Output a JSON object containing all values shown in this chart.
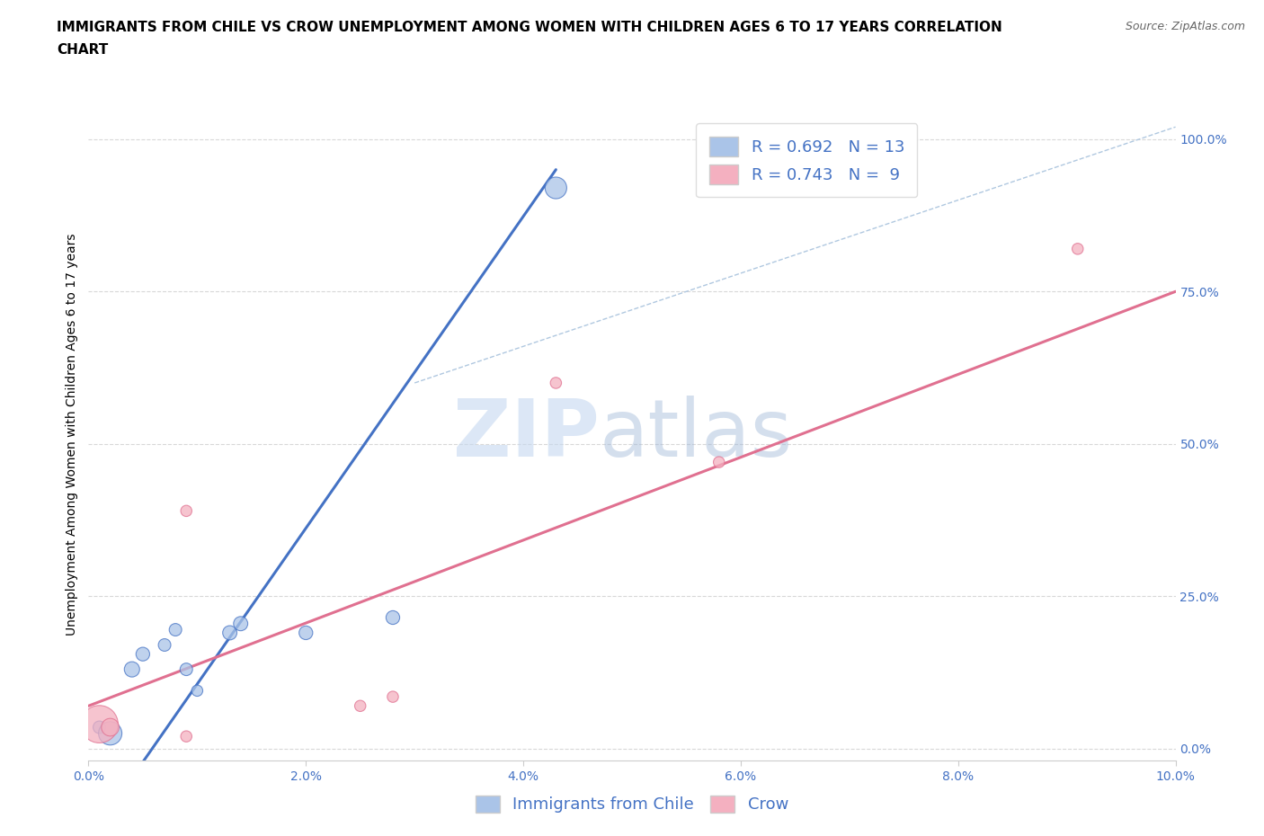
{
  "title_line1": "IMMIGRANTS FROM CHILE VS CROW UNEMPLOYMENT AMONG WOMEN WITH CHILDREN AGES 6 TO 17 YEARS CORRELATION",
  "title_line2": "CHART",
  "source": "Source: ZipAtlas.com",
  "ylabel": "Unemployment Among Women with Children Ages 6 to 17 years",
  "xlim": [
    0.0,
    0.1
  ],
  "ylim": [
    -0.02,
    1.05
  ],
  "xticks": [
    0.0,
    0.02,
    0.04,
    0.06,
    0.08,
    0.1
  ],
  "yticks": [
    0.0,
    0.25,
    0.5,
    0.75,
    1.0
  ],
  "xtick_labels": [
    "0.0%",
    "2.0%",
    "4.0%",
    "6.0%",
    "8.0%",
    "10.0%"
  ],
  "ytick_labels": [
    "0.0%",
    "25.0%",
    "50.0%",
    "75.0%",
    "100.0%"
  ],
  "blue_scatter_x": [
    0.001,
    0.002,
    0.004,
    0.005,
    0.007,
    0.008,
    0.009,
    0.01,
    0.013,
    0.014,
    0.02,
    0.028,
    0.043
  ],
  "blue_scatter_y": [
    0.035,
    0.025,
    0.13,
    0.155,
    0.17,
    0.195,
    0.13,
    0.095,
    0.19,
    0.205,
    0.19,
    0.215,
    0.92
  ],
  "blue_scatter_size": [
    100,
    350,
    150,
    120,
    100,
    100,
    100,
    80,
    130,
    130,
    120,
    120,
    300
  ],
  "pink_scatter_x": [
    0.001,
    0.002,
    0.009,
    0.009,
    0.025,
    0.028,
    0.043,
    0.058,
    0.091
  ],
  "pink_scatter_y": [
    0.04,
    0.035,
    0.39,
    0.02,
    0.07,
    0.085,
    0.6,
    0.47,
    0.82
  ],
  "pink_scatter_size": [
    900,
    200,
    80,
    80,
    80,
    80,
    80,
    80,
    80
  ],
  "blue_line_x": [
    0.0,
    0.043
  ],
  "blue_line_y": [
    -0.15,
    0.95
  ],
  "pink_line_x": [
    0.0,
    0.1
  ],
  "pink_line_y": [
    0.07,
    0.75
  ],
  "diag_line_x": [
    0.03,
    0.1
  ],
  "diag_line_y": [
    0.6,
    1.02
  ],
  "R_blue": 0.692,
  "N_blue": 13,
  "R_pink": 0.743,
  "N_pink": 9,
  "blue_color": "#aac4e8",
  "pink_color": "#f4b0c0",
  "blue_line_color": "#4472c4",
  "pink_line_color": "#e07090",
  "diag_color": "#b0c8e0",
  "tick_color": "#4472c4",
  "watermark_zip": "ZIP",
  "watermark_atlas": "atlas",
  "grid_color": "#d8d8d8",
  "background_color": "#ffffff",
  "title_fontsize": 11,
  "axis_label_fontsize": 10,
  "tick_fontsize": 10,
  "legend_fontsize": 13,
  "source_fontsize": 9
}
